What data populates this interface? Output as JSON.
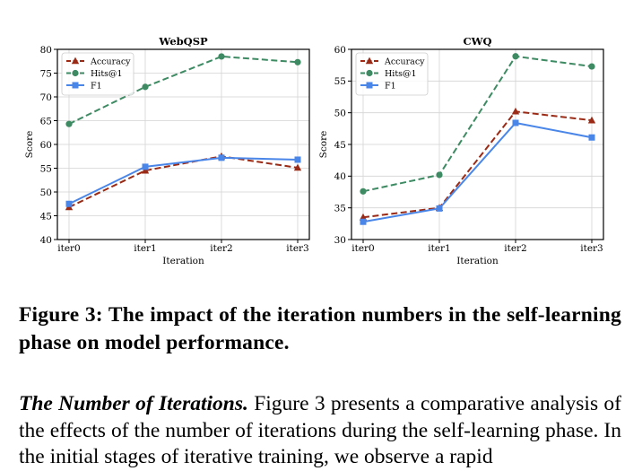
{
  "chart_data": [
    {
      "type": "line",
      "title": "WebQSP",
      "xlabel": "Iteration",
      "ylabel": "Score",
      "categories": [
        "iter0",
        "iter1",
        "iter2",
        "iter3"
      ],
      "ylim": [
        40,
        80
      ],
      "yticks": [
        40,
        45,
        50,
        55,
        60,
        65,
        70,
        75,
        80
      ],
      "grid": true,
      "legend_position": "top-left",
      "series": [
        {
          "name": "Accuracy",
          "values": [
            46.8,
            54.5,
            57.5,
            55.1
          ],
          "color": "#9a2a15",
          "marker": "triangle",
          "dash": true
        },
        {
          "name": "Hits@1",
          "values": [
            64.3,
            72.1,
            78.5,
            77.3
          ],
          "color": "#3d8a63",
          "marker": "circle",
          "dash": true
        },
        {
          "name": "F1",
          "values": [
            47.5,
            55.3,
            57.2,
            56.8
          ],
          "color": "#4a86e8",
          "marker": "square",
          "dash": false
        }
      ]
    },
    {
      "type": "line",
      "title": "CWQ",
      "xlabel": "Iteration",
      "ylabel": "Score",
      "categories": [
        "iter0",
        "iter1",
        "iter2",
        "iter3"
      ],
      "ylim": [
        30,
        60
      ],
      "yticks": [
        30,
        35,
        40,
        45,
        50,
        55,
        60
      ],
      "grid": true,
      "legend_position": "top-left",
      "series": [
        {
          "name": "Accuracy",
          "values": [
            33.5,
            35.0,
            50.2,
            48.8
          ],
          "color": "#9a2a15",
          "marker": "triangle",
          "dash": true
        },
        {
          "name": "Hits@1",
          "values": [
            37.6,
            40.2,
            58.9,
            57.3
          ],
          "color": "#3d8a63",
          "marker": "circle",
          "dash": true
        },
        {
          "name": "F1",
          "values": [
            32.8,
            34.9,
            48.4,
            46.1
          ],
          "color": "#4a86e8",
          "marker": "square",
          "dash": false
        }
      ]
    }
  ],
  "caption": "Figure 3: The impact of the iteration numbers in the self-learning phase on model performance.",
  "body": {
    "run_in": "The Number of Iterations.",
    "text": " Figure 3 presents a comparative analysis of the effects of the number of iterations during the self-learning phase. In the initial stages of iterative training, we observe a rapid"
  }
}
